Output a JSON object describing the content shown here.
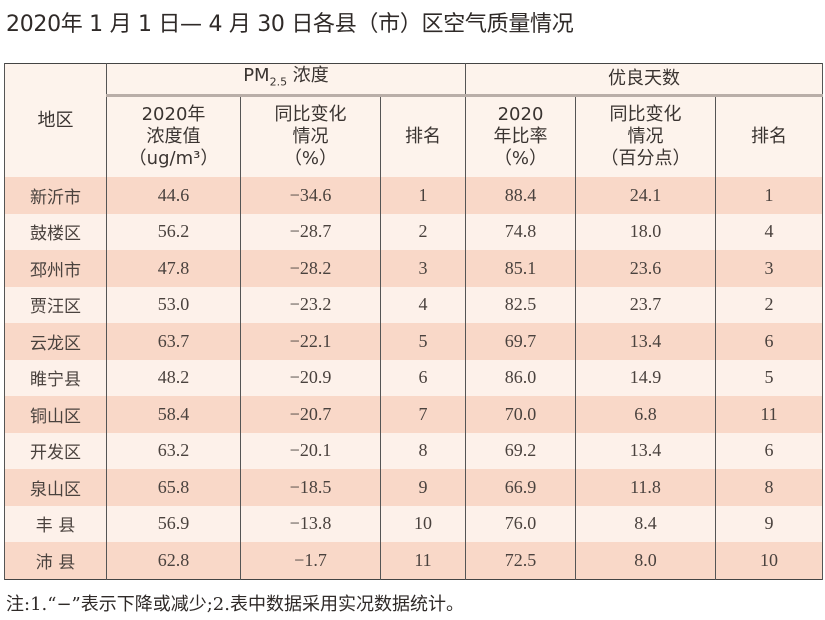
{
  "title": "2020年 1 月 1 日— 4 月 30 日各县（市）区空气质量情况",
  "headers": {
    "region": "地区",
    "pm_group_main": "PM",
    "pm_group_sub": "2.5",
    "pm_group_suffix": " 浓度",
    "good_group": "优良天数",
    "pm_value": [
      "2020年",
      "浓度值",
      "（ug/m³）"
    ],
    "pm_change": [
      "同比变化",
      "情况",
      "（%）"
    ],
    "pm_rank": "排名",
    "good_rate": [
      "2020",
      "年比率",
      "（%）"
    ],
    "good_change": [
      "同比变化",
      "情况",
      "（百分点）"
    ],
    "good_rank": "排名"
  },
  "rows": [
    {
      "region": "新沂市",
      "pm": "44.6",
      "pm_change": "−34.6",
      "pm_rank": "1",
      "rate": "88.4",
      "rate_change": "24.1",
      "rate_rank": "1"
    },
    {
      "region": "鼓楼区",
      "pm": "56.2",
      "pm_change": "−28.7",
      "pm_rank": "2",
      "rate": "74.8",
      "rate_change": "18.0",
      "rate_rank": "4"
    },
    {
      "region": "邳州市",
      "pm": "47.8",
      "pm_change": "−28.2",
      "pm_rank": "3",
      "rate": "85.1",
      "rate_change": "23.6",
      "rate_rank": "3"
    },
    {
      "region": "贾汪区",
      "pm": "53.0",
      "pm_change": "−23.2",
      "pm_rank": "4",
      "rate": "82.5",
      "rate_change": "23.7",
      "rate_rank": "2"
    },
    {
      "region": "云龙区",
      "pm": "63.7",
      "pm_change": "−22.1",
      "pm_rank": "5",
      "rate": "69.7",
      "rate_change": "13.4",
      "rate_rank": "6"
    },
    {
      "region": "睢宁县",
      "pm": "48.2",
      "pm_change": "−20.9",
      "pm_rank": "6",
      "rate": "86.0",
      "rate_change": "14.9",
      "rate_rank": "5"
    },
    {
      "region": "铜山区",
      "pm": "58.4",
      "pm_change": "−20.7",
      "pm_rank": "7",
      "rate": "70.0",
      "rate_change": "6.8",
      "rate_rank": "11"
    },
    {
      "region": "开发区",
      "pm": "63.2",
      "pm_change": "−20.1",
      "pm_rank": "8",
      "rate": "69.2",
      "rate_change": "13.4",
      "rate_rank": "6"
    },
    {
      "region": "泉山区",
      "pm": "65.8",
      "pm_change": "−18.5",
      "pm_rank": "9",
      "rate": "66.9",
      "rate_change": "11.8",
      "rate_rank": "8"
    },
    {
      "region": "丰 县",
      "pm": "56.9",
      "pm_change": "−13.8",
      "pm_rank": "10",
      "rate": "76.0",
      "rate_change": "8.4",
      "rate_rank": "9"
    },
    {
      "region": "沛 县",
      "pm": "62.8",
      "pm_change": "−1.7",
      "pm_rank": "11",
      "rate": "72.5",
      "rate_change": "8.0",
      "rate_rank": "10"
    }
  ],
  "note": "注:1.“−”表示下降或减少;2.表中数据采用实况数据统计。",
  "colors": {
    "row_dark": "#f9d8c8",
    "row_light": "#fdf1ea",
    "header_bg": "#fdf3ec",
    "border": "#444444"
  }
}
